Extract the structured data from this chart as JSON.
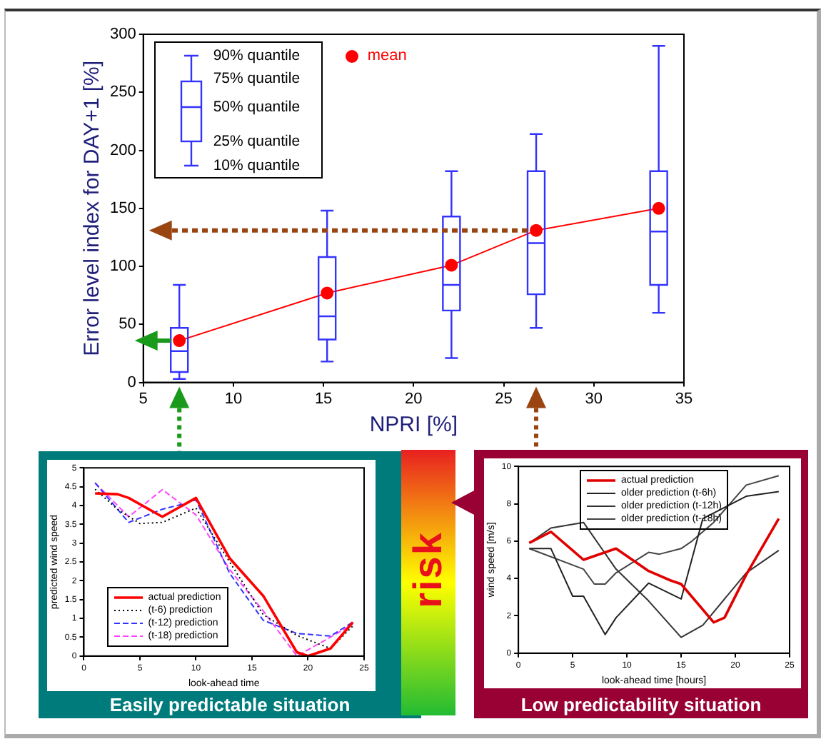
{
  "chart_data": [
    {
      "type": "box",
      "xlabel": "NPRI [%]",
      "ylabel": "Error level index for DAY+1 [%]",
      "x": [
        7,
        15.2,
        22.1,
        26.8,
        33.6
      ],
      "xlim": [
        5,
        35
      ],
      "xticks": [
        5,
        10,
        15,
        20,
        25,
        30,
        35
      ],
      "ylim": [
        0,
        300
      ],
      "yticks": [
        0,
        50,
        100,
        150,
        200,
        250,
        300
      ],
      "grid": false,
      "legend": "top left",
      "annotations": [
        "90% quantile",
        "75% quantile",
        "50% quantile",
        "25% quantile",
        "10% quantile",
        "risk"
      ],
      "series": [
        {
          "type": "box",
          "color": "#3333ff",
          "boxes": [
            {
              "low": 3,
              "q1": 9,
              "median": 27,
              "q3": 47,
              "high": 84
            },
            {
              "low": 18,
              "q1": 37,
              "median": 57,
              "q3": 108,
              "high": 148
            },
            {
              "low": 21,
              "q1": 62,
              "median": 84,
              "q3": 143,
              "high": 182
            },
            {
              "low": 47,
              "q1": 76,
              "median": 120,
              "q3": 182,
              "high": 214
            },
            {
              "low": 60,
              "q1": 84,
              "median": 130,
              "q3": 182,
              "high": 290
            }
          ]
        },
        {
          "type": "line",
          "name": "mean",
          "color": "#ff0000",
          "marker": "circle",
          "values": [
            36,
            77,
            101,
            131,
            150
          ]
        }
      ]
    },
    {
      "type": "line",
      "title": "Easily predictable situation",
      "xlabel": "look-ahead time",
      "ylabel": "predicted wind speed",
      "xlim": [
        0,
        25
      ],
      "xticks": [
        0,
        5,
        10,
        15,
        20,
        25
      ],
      "ylim": [
        0,
        5
      ],
      "yticks": [
        0,
        0.5,
        1,
        1.5,
        2,
        2.5,
        3,
        3.5,
        4,
        4.5,
        5
      ],
      "grid": false,
      "legend": "bottom left",
      "marker": "none",
      "series": [
        {
          "name": "actual prediction",
          "color": "#ff0000",
          "line_style": "solid",
          "x": [
            1,
            3,
            4,
            7,
            10,
            13,
            16,
            19,
            20,
            22,
            24
          ],
          "values": [
            4.32,
            4.3,
            4.2,
            3.7,
            4.2,
            2.6,
            1.6,
            0.1,
            0,
            0.2,
            0.9
          ]
        },
        {
          "name": "(t-6) prediction",
          "color": "#000000",
          "line_style": "dotted",
          "x": [
            1,
            3,
            5,
            7,
            10,
            13,
            16,
            19,
            22,
            24
          ],
          "values": [
            4.43,
            3.9,
            3.52,
            3.55,
            3.93,
            2.5,
            1.1,
            0.55,
            0.2,
            0.8
          ]
        },
        {
          "name": "(t-12) prediction",
          "color": "#3333ff",
          "line_style": "dashed",
          "x": [
            1,
            4,
            7,
            9,
            10,
            13,
            16,
            19,
            22,
            24
          ],
          "values": [
            4.6,
            3.55,
            3.9,
            4.05,
            4.15,
            2.2,
            0.95,
            0.6,
            0.53,
            0.9
          ]
        },
        {
          "name": "(t-18) prediction",
          "color": "#ff44ff",
          "line_style": "dashed",
          "x": [
            1,
            4,
            7,
            10,
            13,
            16,
            19,
            22,
            24
          ],
          "values": [
            4.6,
            3.7,
            4.42,
            3.75,
            2.3,
            1.2,
            0,
            0.5,
            0.85
          ]
        }
      ]
    },
    {
      "type": "line",
      "title": "Low predictability situation",
      "xlabel": "look-ahead time [hours]",
      "ylabel": "wind speed [m/s]",
      "xlim": [
        0,
        25
      ],
      "xticks": [
        0,
        5,
        10,
        15,
        20,
        25
      ],
      "ylim": [
        0,
        10
      ],
      "yticks": [
        0,
        2,
        4,
        6,
        8,
        10
      ],
      "grid": false,
      "legend": "top",
      "marker": "none",
      "series": [
        {
          "name": "actual prediction",
          "color": "#e00000",
          "line_style": "solid",
          "x": [
            1,
            3,
            6,
            9,
            12,
            14,
            15,
            18,
            19,
            21,
            24
          ],
          "values": [
            5.9,
            6.5,
            5,
            5.6,
            4.4,
            3.9,
            3.7,
            1.65,
            1.9,
            4.2,
            7.2
          ]
        },
        {
          "name": "older prediction (t-6h)",
          "color": "#222222",
          "line_style": "solid",
          "x": [
            1,
            3,
            5,
            6,
            8,
            9,
            12,
            15,
            17,
            21,
            24
          ],
          "values": [
            5.6,
            5.6,
            3.05,
            3.05,
            1,
            1.9,
            3.75,
            2.9,
            7.2,
            8.4,
            8.65
          ]
        },
        {
          "name": "older prediction (t-12h)",
          "color": "#333333",
          "line_style": "solid",
          "x": [
            1,
            3,
            6,
            9,
            12,
            15,
            17,
            21,
            24
          ],
          "values": [
            5.9,
            6.7,
            7,
            4.5,
            2.8,
            0.85,
            1.5,
            4.3,
            5.5
          ]
        },
        {
          "name": "older prediction (t-18h)",
          "color": "#444444",
          "line_style": "solid",
          "x": [
            1,
            6,
            7,
            8,
            9,
            12,
            13,
            15,
            16,
            18,
            21,
            24
          ],
          "values": [
            5.6,
            4.5,
            3.7,
            3.7,
            4.3,
            5.4,
            5.3,
            5.6,
            6,
            7,
            9,
            9.5
          ]
        }
      ]
    }
  ]
}
